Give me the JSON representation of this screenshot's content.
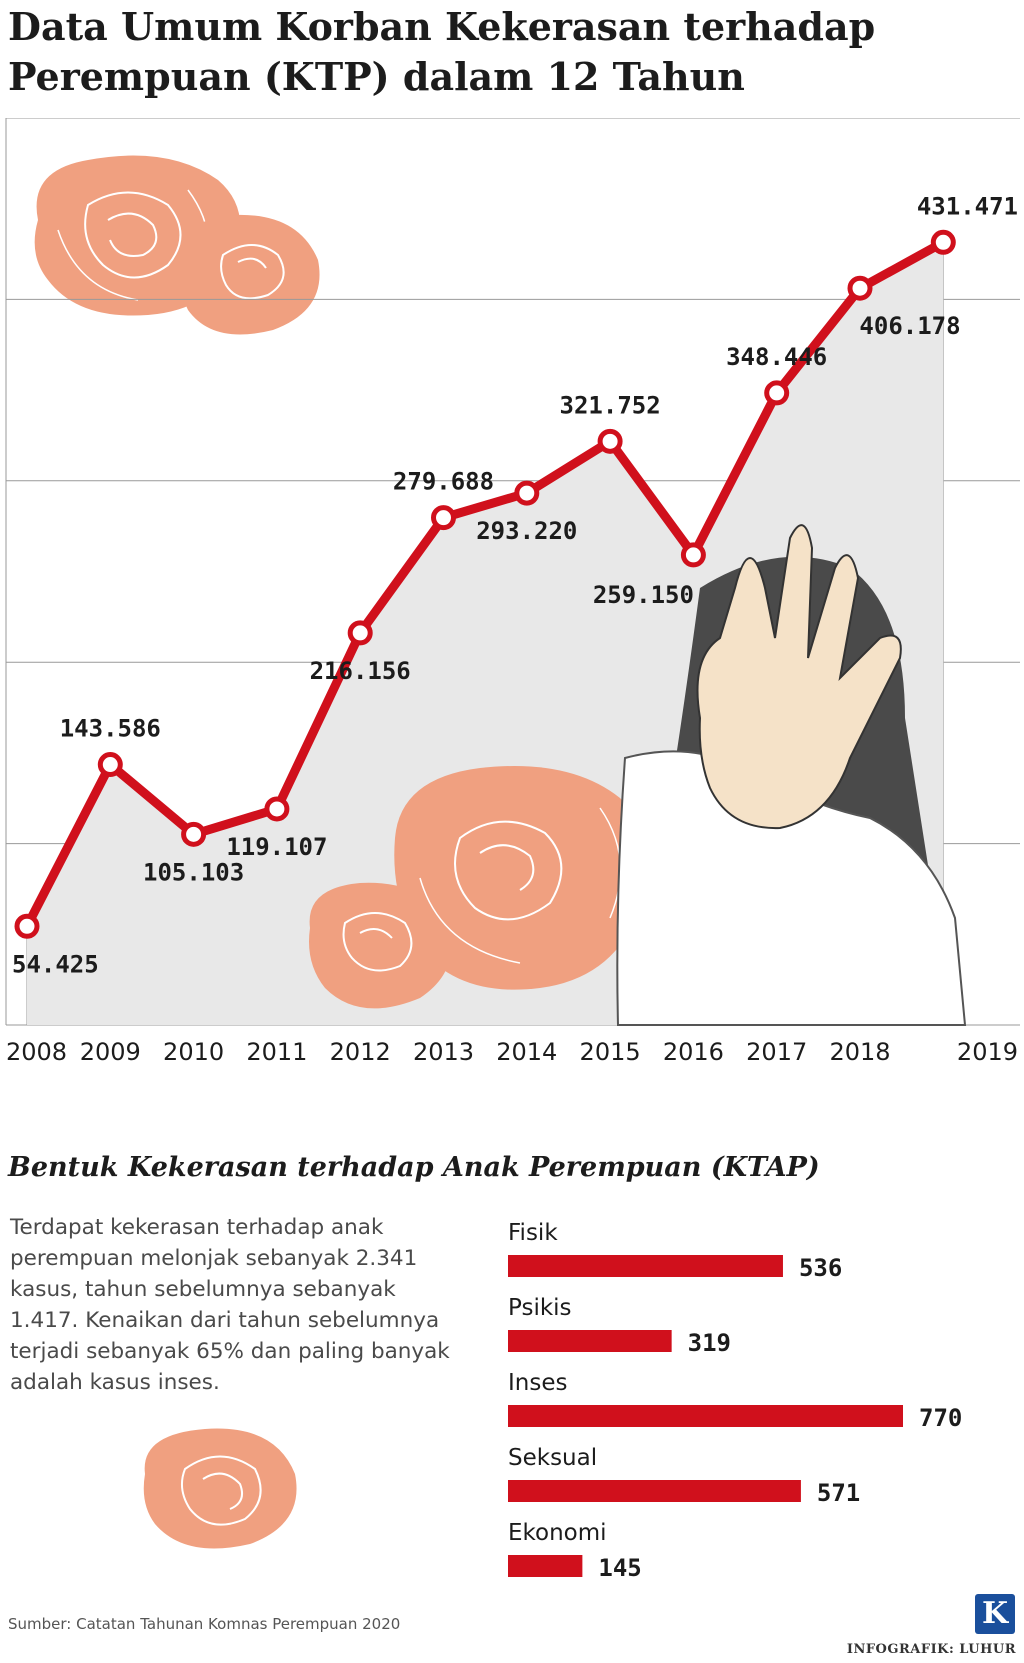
{
  "title": "Data Umum Korban Kekerasan terhadap Perempuan (KTP) dalam 12 Tahun",
  "subtitle": "Bentuk Kekerasan terhadap Anak Perempuan (KTAP)",
  "description": "Terdapat kekerasan terhadap anak perempuan melonjak sebanyak 2.341 kasus, tahun sebelumnya sebanyak 1.417. Kenaikan dari tahun sebelumnya terjadi sebanyak 65% dan paling banyak adalah kasus inses.",
  "source": "Sumber: Catatan Tahunan Komnas Perempuan 2020",
  "credit": "INFOGRAFIK: LUHUR",
  "logo_letter": "K",
  "colors": {
    "line": "#d0101c",
    "area": "#e8e8e8",
    "grid": "#999999",
    "bar": "#d0101c",
    "rose": "#f0a080",
    "rose_stroke": "#ffffff"
  },
  "chart_data": [
    {
      "type": "line",
      "title": "Data Umum Korban Kekerasan terhadap Perempuan (KTP) dalam 12 Tahun",
      "x": [
        "2008",
        "2009",
        "2010",
        "2011",
        "2012",
        "2013",
        "2014",
        "2015",
        "2016",
        "2017",
        "2018",
        "2019"
      ],
      "series": [
        {
          "values": [
            54425,
            143586,
            105103,
            119107,
            216156,
            279688,
            293220,
            321752,
            259150,
            348446,
            406178,
            431471
          ],
          "labels": [
            "54.425",
            "143.586",
            "105.103",
            "119.107",
            "216.156",
            "279.688",
            "293.220",
            "321.752",
            "259.150",
            "348.446",
            "406.178",
            "431.471"
          ]
        }
      ],
      "ylim": [
        0,
        500000
      ],
      "grid": true,
      "area_fill": true
    },
    {
      "type": "bar",
      "orientation": "horizontal",
      "title": "Bentuk Kekerasan terhadap Anak Perempuan (KTAP)",
      "categories": [
        "Fisik",
        "Psikis",
        "Inses",
        "Seksual",
        "Ekonomi"
      ],
      "values": [
        536,
        319,
        770,
        571,
        145
      ]
    }
  ]
}
